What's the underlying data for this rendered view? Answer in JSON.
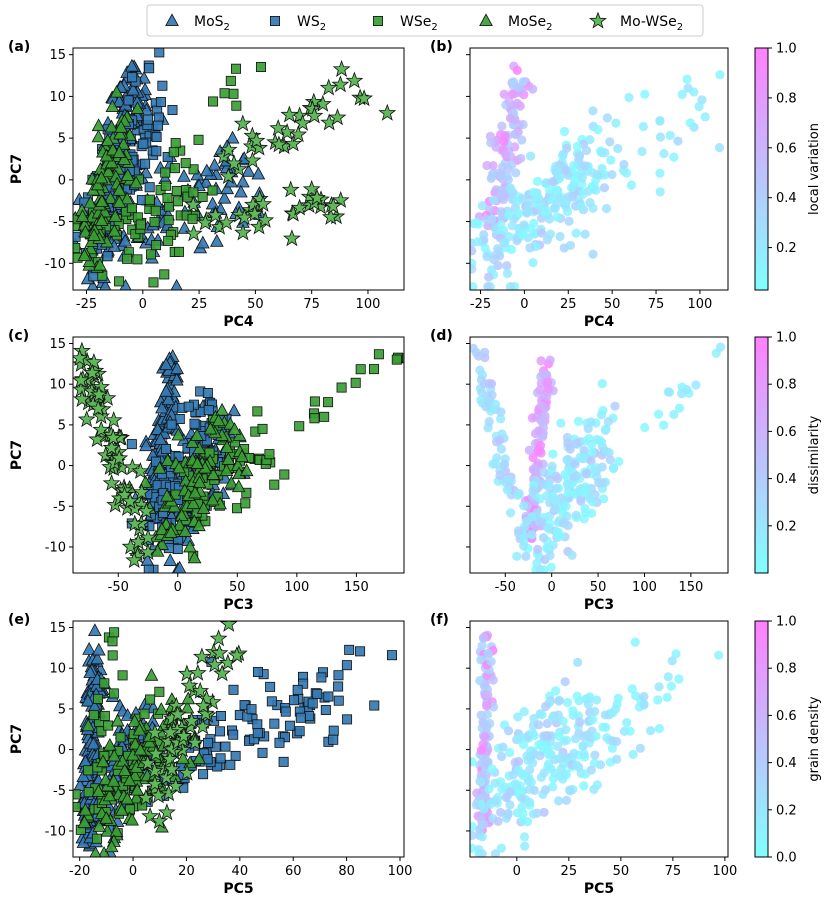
{
  "legend": {
    "entries": [
      {
        "base": "MoS",
        "sub": "2",
        "suffix": "",
        "marker": "triangle",
        "color": "#3479b3"
      },
      {
        "base": "WS",
        "sub": "2",
        "suffix": "",
        "marker": "square",
        "color": "#3479b3"
      },
      {
        "base": "WSe",
        "sub": "2",
        "suffix": "",
        "marker": "square",
        "color": "#3a9e34"
      },
      {
        "base": "MoSe",
        "sub": "2",
        "suffix": "",
        "marker": "triangle",
        "color": "#3a9e34"
      },
      {
        "base": "Mo-WSe",
        "sub": "2",
        "suffix": "",
        "marker": "star",
        "color": "#5fb85a"
      }
    ]
  },
  "colors": {
    "blue": "#3479b3",
    "green": "#3a9e34",
    "star": "#5fb85a",
    "cmap_low": "#80ffff",
    "cmap_high": "#ff80ff"
  },
  "chart_data": [
    {
      "panel_label": "(a)",
      "type": "scatter",
      "xlabel": "PC4",
      "ylabel": "PC7",
      "xlim": [
        -31,
        116
      ],
      "ylim": [
        -13.2,
        15.8
      ],
      "xticks": [
        -25,
        0,
        25,
        50,
        75,
        100
      ],
      "yticks": [
        -10,
        -5,
        0,
        5,
        10,
        15
      ],
      "mode": "material",
      "clusters": [
        {
          "name": "MoS2 arm",
          "marker": "triangle",
          "color": "#3479b3",
          "n": 150,
          "x0": -17,
          "y0": -6,
          "x1": -3,
          "y1": 12,
          "spread": [
            4,
            1.5
          ]
        },
        {
          "name": "MoS2 base",
          "marker": "triangle",
          "color": "#3479b3",
          "n": 110,
          "x0": -24,
          "y0": -8,
          "x1": 48,
          "y1": 0,
          "spread": [
            6,
            3
          ]
        },
        {
          "name": "WS2 base",
          "marker": "square",
          "color": "#3479b3",
          "n": 120,
          "x0": -24,
          "y0": -6,
          "x1": 5,
          "y1": 8,
          "spread": [
            5,
            3
          ]
        },
        {
          "name": "WSe2",
          "marker": "square",
          "color": "#3a9e34",
          "n": 70,
          "x0": -24,
          "y0": -9,
          "x1": 20,
          "y1": -2,
          "spread": [
            6,
            3
          ]
        },
        {
          "name": "WSe2 outliers",
          "marker": "square",
          "color": "#3a9e34",
          "n": 12,
          "x0": 15,
          "y0": 2,
          "x1": 45,
          "y1": 14,
          "spread": [
            4,
            2
          ]
        },
        {
          "name": "MoSe2",
          "marker": "triangle",
          "color": "#3a9e34",
          "n": 90,
          "x0": -25,
          "y0": -8,
          "x1": -10,
          "y1": 6,
          "spread": [
            4,
            3
          ]
        },
        {
          "name": "Mo-WSe2 upper",
          "marker": "star",
          "color": "#5fb85a",
          "n": 35,
          "x0": 30,
          "y0": 1,
          "x1": 106,
          "y1": 12.5,
          "spread": [
            5,
            1.3
          ]
        },
        {
          "name": "Mo-WSe2 lower",
          "marker": "star",
          "color": "#5fb85a",
          "n": 35,
          "x0": 20,
          "y0": -6,
          "x1": 84,
          "y1": -3,
          "spread": [
            5,
            1.2
          ]
        }
      ]
    },
    {
      "panel_label": "(b)",
      "type": "scatter",
      "xlabel": "PC4",
      "ylabel": "",
      "xlim": [
        -31,
        116
      ],
      "ylim": [
        -13.2,
        15.8
      ],
      "xticks": [
        -25,
        0,
        25,
        50,
        75,
        100
      ],
      "yticks": [
        -10,
        -5,
        0,
        5,
        10,
        15
      ],
      "mode": "colormap",
      "colorbar": {
        "label": "local variation",
        "ticks": [
          0.2,
          0.4,
          0.6,
          0.8,
          1.0
        ],
        "range": [
          0.03,
          1.0
        ]
      },
      "clusters": [
        {
          "name": "arm",
          "n": 110,
          "x0": -17,
          "y0": -6,
          "x1": -3,
          "y1": 12,
          "spread": [
            4,
            1.5
          ],
          "v": [
            0.35,
            1.0
          ]
        },
        {
          "name": "base",
          "n": 200,
          "x0": -25,
          "y0": -9,
          "x1": 40,
          "y1": 2,
          "spread": [
            7,
            3
          ],
          "v": [
            0.05,
            0.45
          ]
        },
        {
          "name": "far",
          "n": 60,
          "x0": 20,
          "y0": -4,
          "x1": 106,
          "y1": 11,
          "spread": [
            6,
            3
          ],
          "v": [
            0.05,
            0.35
          ]
        }
      ]
    },
    {
      "panel_label": "(c)",
      "type": "scatter",
      "xlabel": "PC3",
      "ylabel": "PC7",
      "xlim": [
        -88,
        190
      ],
      "ylim": [
        -13.2,
        15.8
      ],
      "xticks": [
        -50,
        0,
        50,
        100,
        150
      ],
      "yticks": [
        -10,
        -5,
        0,
        5,
        10,
        15
      ],
      "mode": "material",
      "clusters": [
        {
          "name": "MoS2 arm",
          "marker": "triangle",
          "color": "#3479b3",
          "n": 150,
          "x0": -20,
          "y0": -6,
          "x1": -5,
          "y1": 12,
          "spread": [
            4,
            1.5
          ]
        },
        {
          "name": "MoS2 base",
          "marker": "triangle",
          "color": "#3479b3",
          "n": 110,
          "x0": -10,
          "y0": -9,
          "x1": 40,
          "y1": 4,
          "spread": [
            10,
            3
          ]
        },
        {
          "name": "WS2",
          "marker": "square",
          "color": "#3479b3",
          "n": 120,
          "x0": -20,
          "y0": -7,
          "x1": 30,
          "y1": 7,
          "spread": [
            9,
            3
          ]
        },
        {
          "name": "WSe2",
          "marker": "square",
          "color": "#3a9e34",
          "n": 70,
          "x0": 0,
          "y0": -5,
          "x1": 80,
          "y1": 3,
          "spread": [
            12,
            3
          ]
        },
        {
          "name": "WSe2 tail",
          "marker": "square",
          "color": "#3a9e34",
          "n": 14,
          "x0": 100,
          "y0": 4,
          "x1": 182,
          "y1": 14.5,
          "spread": [
            4,
            1
          ]
        },
        {
          "name": "MoSe2",
          "marker": "triangle",
          "color": "#3a9e34",
          "n": 90,
          "x0": -20,
          "y0": -8,
          "x1": 50,
          "y1": 4,
          "spread": [
            10,
            3
          ]
        },
        {
          "name": "Mo-WSe2",
          "marker": "star",
          "color": "#5fb85a",
          "n": 75,
          "x0": -80,
          "y0": 13,
          "x1": -28,
          "y1": -11,
          "spread": [
            5,
            1.5
          ]
        }
      ]
    },
    {
      "panel_label": "(d)",
      "type": "scatter",
      "xlabel": "PC3",
      "ylabel": "",
      "xlim": [
        -88,
        190
      ],
      "ylim": [
        -13.2,
        15.8
      ],
      "xticks": [
        -50,
        0,
        50,
        100,
        150
      ],
      "yticks": [
        -10,
        -5,
        0,
        5,
        10,
        15
      ],
      "mode": "colormap",
      "colorbar": {
        "label": "dissimilarity",
        "ticks": [
          0.2,
          0.4,
          0.6,
          0.8,
          1.0
        ],
        "range": [
          0.0,
          1.0
        ]
      },
      "clusters": [
        {
          "name": "arm",
          "n": 110,
          "x0": -25,
          "y0": -8,
          "x1": -5,
          "y1": 12,
          "spread": [
            4,
            1.5
          ],
          "v": [
            0.5,
            1.0
          ]
        },
        {
          "name": "base",
          "n": 190,
          "x0": -15,
          "y0": -9,
          "x1": 60,
          "y1": 4,
          "spread": [
            12,
            3
          ],
          "v": [
            0.05,
            0.45
          ]
        },
        {
          "name": "left",
          "n": 70,
          "x0": -80,
          "y0": 13,
          "x1": -28,
          "y1": -11,
          "spread": [
            5,
            1.5
          ],
          "v": [
            0.15,
            0.5
          ]
        },
        {
          "name": "tail",
          "n": 14,
          "x0": 100,
          "y0": 4,
          "x1": 182,
          "y1": 14.5,
          "spread": [
            4,
            1
          ],
          "v": [
            0.05,
            0.25
          ]
        }
      ]
    },
    {
      "panel_label": "(e)",
      "type": "scatter",
      "xlabel": "PC5",
      "ylabel": "PC7",
      "xlim": [
        -22.5,
        101.5
      ],
      "ylim": [
        -13.2,
        15.8
      ],
      "xticks": [
        -20,
        0,
        20,
        40,
        60,
        80,
        100
      ],
      "yticks": [
        -10,
        -5,
        0,
        5,
        10,
        15
      ],
      "mode": "material",
      "clusters": [
        {
          "name": "MoS2 arm",
          "marker": "triangle",
          "color": "#3479b3",
          "n": 150,
          "x0": -17,
          "y0": -10,
          "x1": -14,
          "y1": 12,
          "spread": [
            1.5,
            2
          ]
        },
        {
          "name": "MoS2 base",
          "marker": "triangle",
          "color": "#3479b3",
          "n": 90,
          "x0": -15,
          "y0": -8,
          "x1": 5,
          "y1": 3,
          "spread": [
            4,
            3
          ]
        },
        {
          "name": "WS2",
          "marker": "square",
          "color": "#3479b3",
          "n": 120,
          "x0": 5,
          "y0": -3,
          "x1": 78,
          "y1": 8,
          "spread": [
            6,
            2.5
          ]
        },
        {
          "name": "WS2 out",
          "marker": "square",
          "color": "#3479b3",
          "n": 1,
          "x0": 97,
          "y0": 11.6,
          "x1": 97,
          "y1": 11.6,
          "spread": [
            0,
            0
          ]
        },
        {
          "name": "WSe2",
          "marker": "square",
          "color": "#3a9e34",
          "n": 70,
          "x0": -15,
          "y0": -9,
          "x1": 10,
          "y1": 3,
          "spread": [
            5,
            3
          ]
        },
        {
          "name": "WSe2 up",
          "marker": "square",
          "color": "#3a9e34",
          "n": 14,
          "x0": -12,
          "y0": 2,
          "x1": -8,
          "y1": 14,
          "spread": [
            2,
            2
          ]
        },
        {
          "name": "MoSe2",
          "marker": "triangle",
          "color": "#3a9e34",
          "n": 100,
          "x0": -15,
          "y0": -9,
          "x1": 20,
          "y1": 4,
          "spread": [
            5,
            3
          ]
        },
        {
          "name": "Mo-WSe2",
          "marker": "star",
          "color": "#5fb85a",
          "n": 60,
          "x0": 8,
          "y0": -6,
          "x1": 34,
          "y1": 13,
          "spread": [
            3,
            2
          ]
        }
      ]
    },
    {
      "panel_label": "(f)",
      "type": "scatter",
      "xlabel": "PC5",
      "ylabel": "",
      "xlim": [
        -22.5,
        101.5
      ],
      "ylim": [
        -13.2,
        15.8
      ],
      "xticks": [
        0,
        25,
        50,
        75,
        100
      ],
      "yticks": [
        -10,
        -5,
        0,
        5,
        10,
        15
      ],
      "mode": "colormap",
      "colorbar": {
        "label": "grain density",
        "ticks": [
          0.0,
          0.2,
          0.4,
          0.6,
          0.8,
          1.0
        ],
        "range": [
          0.0,
          1.0
        ]
      },
      "clusters": [
        {
          "name": "arm",
          "n": 110,
          "x0": -17,
          "y0": -10,
          "x1": -14,
          "y1": 12,
          "spread": [
            1.5,
            2
          ],
          "v": [
            0.3,
            1.0
          ]
        },
        {
          "name": "base",
          "n": 200,
          "x0": -15,
          "y0": -9,
          "x1": 30,
          "y1": 5,
          "spread": [
            8,
            3
          ],
          "v": [
            0.05,
            0.45
          ]
        },
        {
          "name": "right",
          "n": 70,
          "x0": 15,
          "y0": -3,
          "x1": 78,
          "y1": 8,
          "spread": [
            6,
            2.5
          ],
          "v": [
            0.05,
            0.3
          ]
        },
        {
          "name": "out",
          "n": 1,
          "x0": 97,
          "y0": 11.6,
          "x1": 97,
          "y1": 11.6,
          "spread": [
            0,
            0
          ],
          "v": [
            0.1,
            0.1
          ]
        }
      ]
    }
  ]
}
